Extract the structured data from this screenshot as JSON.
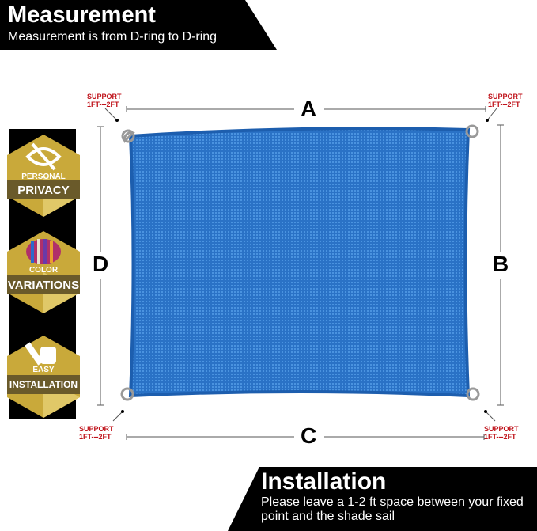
{
  "header": {
    "title": "Measurement",
    "subtitle": "Measurement is from D-ring to D-ring"
  },
  "footer": {
    "title": "Installation",
    "text": "Please leave a 1-2 ft space between your fixed point and the shade sail"
  },
  "dimensions": {
    "top": "A",
    "right": "B",
    "bottom": "C",
    "left": "D"
  },
  "support_labels": {
    "top_left": [
      "SUPPORT",
      "1FT---2FT"
    ],
    "top_right": [
      "SUPPORT",
      "1FT---2FT"
    ],
    "bottom_left": [
      "SUPPORT",
      "1FT---2FT"
    ],
    "bottom_right": [
      "SUPPORT",
      "1FT---2FT"
    ]
  },
  "badges": [
    {
      "small": "PERSONAL",
      "big": "PRIVACY",
      "icon": "eye-slash-icon"
    },
    {
      "small": "COLOR",
      "big": "VARIATIONS",
      "icon": "color-stripes-icon"
    },
    {
      "small": "EASY",
      "big": "INSTALLATION",
      "icon": "wrench-hand-icon"
    }
  ],
  "colors": {
    "sail": "#2a72c6",
    "badge_gold": "#c9a93a",
    "support_red": "#c0141c"
  }
}
